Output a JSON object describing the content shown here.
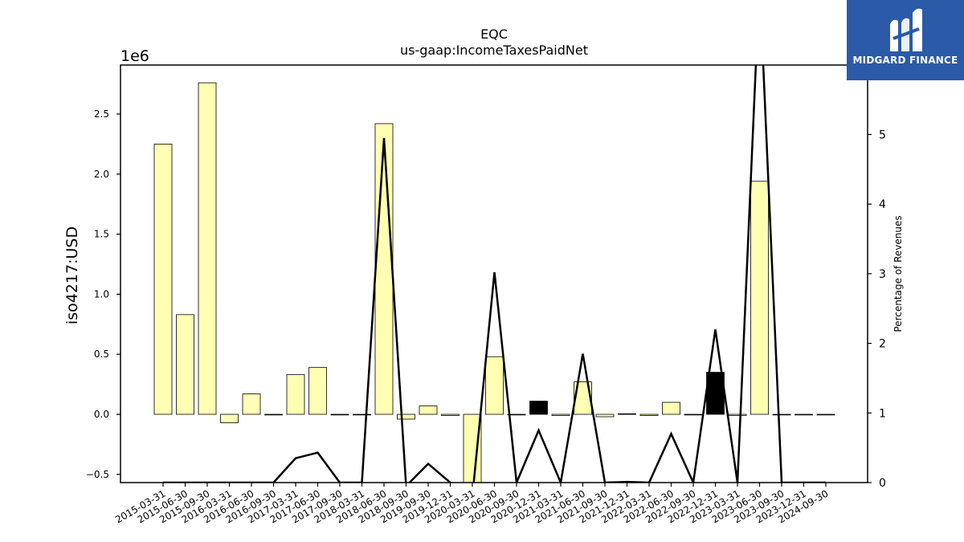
{
  "chart_data": {
    "type": "bar",
    "title": "EQC",
    "subtitle": "us-gaap:IncomeTaxesPaidNet",
    "ylabel": "iso4217:USD",
    "y_offset_label": "1e6",
    "y2label": "Percentage of Revenues",
    "ylim": [
      -0.57,
      2.9
    ],
    "y2lim": [
      0,
      6.0
    ],
    "yticks": [
      "−0.5",
      "0.0",
      "0.5",
      "1.0",
      "1.5",
      "2.0",
      "2.5"
    ],
    "y2ticks": [
      "0",
      "1",
      "2",
      "3",
      "4",
      "5"
    ],
    "grid": false,
    "categories": [
      "2015-03-31",
      "2015-06-30",
      "2015-09-30",
      "2016-03-31",
      "2016-06-30",
      "2016-09-30",
      "2017-03-31",
      "2017-06-30",
      "2017-09-30",
      "2018-03-31",
      "2018-06-30",
      "2018-09-30",
      "2019-09-30",
      "2019-12-31",
      "2020-03-31",
      "2020-06-30",
      "2020-09-30",
      "2020-12-31",
      "2021-03-31",
      "2021-06-30",
      "2021-09-30",
      "2021-12-31",
      "2022-03-31",
      "2022-06-30",
      "2022-09-30",
      "2022-12-31",
      "2023-03-31",
      "2023-06-30",
      "2023-09-30",
      "2023-12-31",
      "2024-09-30"
    ],
    "series": [
      {
        "kind": "bar",
        "units": "1e6 USD",
        "values": [
          2.25,
          0.83,
          2.76,
          -0.07,
          0.17,
          0.0,
          0.33,
          0.39,
          0.0,
          0.0,
          2.42,
          -0.04,
          0.07,
          -0.01,
          -0.57,
          0.48,
          0.0,
          0.11,
          -0.01,
          0.27,
          -0.02,
          0.005,
          -0.01,
          0.1,
          0.0,
          0.35,
          -0.01,
          1.94,
          0.0,
          0.0,
          0.0
        ],
        "colors": [
          "#ffffb3",
          "#ffffb3",
          "#ffffb3",
          "#ffffb3",
          "#ffffb3",
          "#ffffb3",
          "#ffffb3",
          "#ffffb3",
          "#ffffb3",
          "#ffffb3",
          "#ffffb3",
          "#ffffb3",
          "#ffffb3",
          "#ffffb3",
          "#ffffb3",
          "#ffffb3",
          "#ffffb3",
          "#000000",
          "#ffffb3",
          "#ffffb3",
          "#ffffb3",
          "#000000",
          "#ffffb3",
          "#ffffb3",
          "#ffffb3",
          "#000000",
          "#ffffb3",
          "#ffffb3",
          "#ffffb3",
          "#ffffb3",
          "#ffffb3"
        ]
      },
      {
        "kind": "line",
        "axis": "right",
        "units": "percent",
        "values": [
          0,
          0,
          0,
          0,
          0,
          0,
          0.35,
          0.43,
          0.0,
          0.0,
          4.95,
          -0.05,
          0.27,
          0.0,
          -0.2,
          3.02,
          0.0,
          0.75,
          0.0,
          1.85,
          0.0,
          0.01,
          0.0,
          0.7,
          0.0,
          2.2,
          0.0,
          7.2,
          0.0,
          0.0,
          0.0
        ]
      }
    ],
    "colors": {
      "bar": "#ffffb3",
      "bar_highlight": "#000000",
      "line": "#000000",
      "axis": "#000000"
    }
  },
  "logo": {
    "text": "MIDGARD FINANCE",
    "color": "#2b5aa8"
  }
}
